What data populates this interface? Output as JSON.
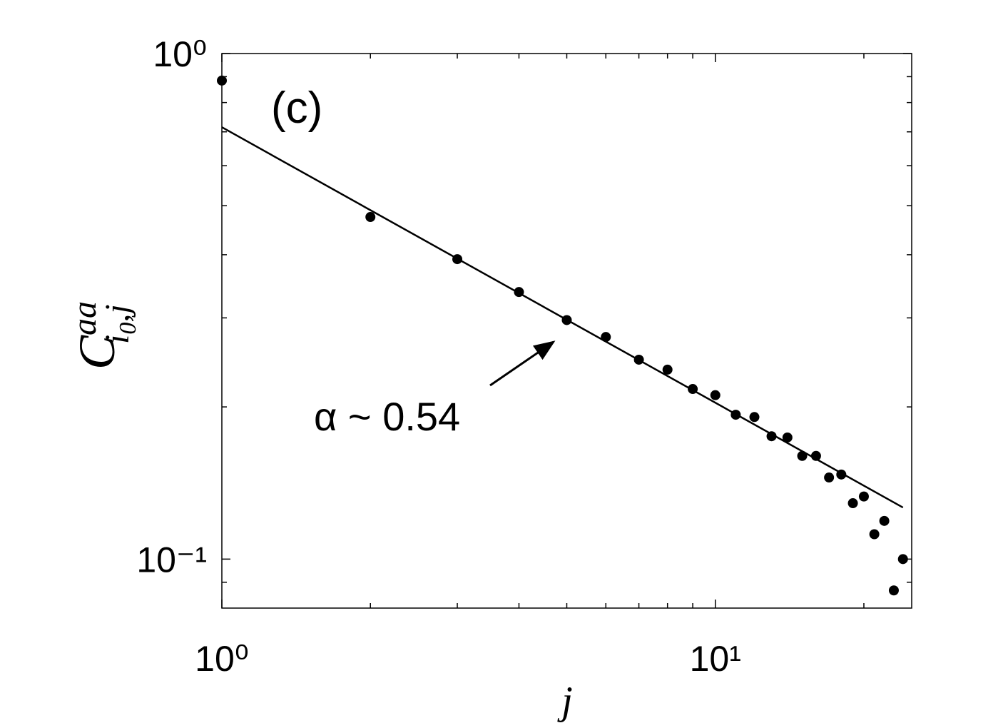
{
  "chart_data": {
    "type": "scatter",
    "xlabel": "j",
    "ylabel": {
      "base": "C",
      "sup": "aa",
      "sub": "i",
      "subsub": "0",
      "sub2": ",j"
    },
    "xlim": [
      1,
      25
    ],
    "ylim": [
      0.08,
      1
    ],
    "xscale": "log",
    "yscale": "log",
    "xticks": [
      {
        "value": 1,
        "label": "10⁰"
      },
      {
        "value": 10,
        "label": "10¹"
      }
    ],
    "yticks": [
      {
        "value": 0.1,
        "label": "10⁻¹"
      },
      {
        "value": 1,
        "label": "10⁰"
      }
    ],
    "xminorticks": [
      2,
      3,
      4,
      5,
      6,
      7,
      8,
      9,
      20
    ],
    "yminorticks": [
      0.09,
      0.2,
      0.3,
      0.4,
      0.5,
      0.6,
      0.7,
      0.8,
      0.9
    ],
    "series": [
      {
        "mode": "markers",
        "color": "#000000",
        "x": [
          1,
          2,
          3,
          4,
          5,
          6,
          7,
          8,
          9,
          10,
          11,
          12,
          13,
          14,
          15,
          16,
          17,
          18,
          19,
          20,
          21,
          22,
          23,
          24
        ],
        "values": [
          0.884,
          0.475,
          0.392,
          0.3375,
          0.297,
          0.275,
          0.248,
          0.237,
          0.217,
          0.211,
          0.193,
          0.191,
          0.175,
          0.174,
          0.16,
          0.16,
          0.145,
          0.147,
          0.129,
          0.133,
          0.112,
          0.119,
          0.0867,
          0.1
        ]
      },
      {
        "mode": "line",
        "color": "#000000",
        "x": [
          1,
          24
        ],
        "values": [
          0.715,
          0.1265
        ]
      }
    ],
    "annotations": [
      "(c)",
      "α ~ 0.54"
    ]
  }
}
